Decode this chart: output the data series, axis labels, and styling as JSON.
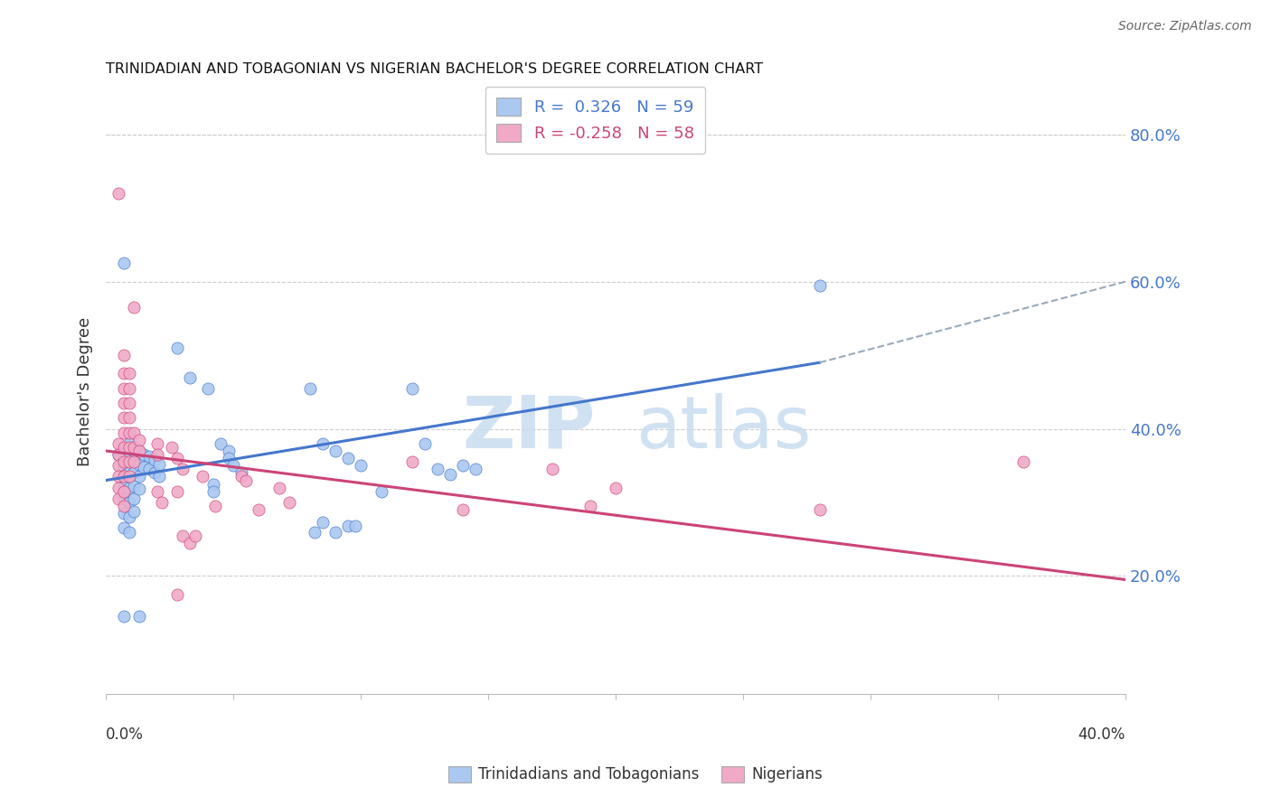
{
  "title": "TRINIDADIAN AND TOBAGONIAN VS NIGERIAN BACHELOR'S DEGREE CORRELATION CHART",
  "source": "Source: ZipAtlas.com",
  "ylabel": "Bachelor's Degree",
  "right_yticks": [
    20.0,
    40.0,
    60.0,
    80.0
  ],
  "xlim": [
    0.0,
    0.4
  ],
  "ylim": [
    0.04,
    0.86
  ],
  "blue_color": "#aac8f0",
  "pink_color": "#f0aac8",
  "blue_line_color": "#4477cc",
  "pink_line_color": "#cc4477",
  "dashed_line_color": "#99aabb",
  "watermark_zip": "ZIP",
  "watermark_atlas": "atlas",
  "blue_scatter": [
    [
      0.005,
      0.365
    ],
    [
      0.007,
      0.345
    ],
    [
      0.007,
      0.325
    ],
    [
      0.007,
      0.305
    ],
    [
      0.007,
      0.285
    ],
    [
      0.007,
      0.265
    ],
    [
      0.009,
      0.38
    ],
    [
      0.009,
      0.36
    ],
    [
      0.009,
      0.34
    ],
    [
      0.009,
      0.32
    ],
    [
      0.009,
      0.3
    ],
    [
      0.009,
      0.28
    ],
    [
      0.009,
      0.26
    ],
    [
      0.011,
      0.375
    ],
    [
      0.011,
      0.358
    ],
    [
      0.011,
      0.34
    ],
    [
      0.011,
      0.322
    ],
    [
      0.011,
      0.305
    ],
    [
      0.011,
      0.288
    ],
    [
      0.013,
      0.37
    ],
    [
      0.013,
      0.352
    ],
    [
      0.013,
      0.335
    ],
    [
      0.013,
      0.318
    ],
    [
      0.015,
      0.365
    ],
    [
      0.015,
      0.348
    ],
    [
      0.017,
      0.362
    ],
    [
      0.017,
      0.345
    ],
    [
      0.019,
      0.358
    ],
    [
      0.019,
      0.34
    ],
    [
      0.021,
      0.352
    ],
    [
      0.021,
      0.335
    ],
    [
      0.007,
      0.625
    ],
    [
      0.028,
      0.51
    ],
    [
      0.033,
      0.47
    ],
    [
      0.04,
      0.455
    ],
    [
      0.042,
      0.325
    ],
    [
      0.042,
      0.315
    ],
    [
      0.045,
      0.38
    ],
    [
      0.048,
      0.37
    ],
    [
      0.048,
      0.36
    ],
    [
      0.05,
      0.35
    ],
    [
      0.053,
      0.34
    ],
    [
      0.08,
      0.455
    ],
    [
      0.085,
      0.38
    ],
    [
      0.09,
      0.37
    ],
    [
      0.095,
      0.36
    ],
    [
      0.1,
      0.35
    ],
    [
      0.12,
      0.455
    ],
    [
      0.125,
      0.38
    ],
    [
      0.13,
      0.345
    ],
    [
      0.135,
      0.338
    ],
    [
      0.14,
      0.35
    ],
    [
      0.145,
      0.345
    ],
    [
      0.007,
      0.145
    ],
    [
      0.013,
      0.145
    ],
    [
      0.082,
      0.26
    ],
    [
      0.085,
      0.273
    ],
    [
      0.09,
      0.26
    ],
    [
      0.095,
      0.268
    ],
    [
      0.098,
      0.268
    ],
    [
      0.108,
      0.315
    ],
    [
      0.28,
      0.595
    ]
  ],
  "pink_scatter": [
    [
      0.005,
      0.72
    ],
    [
      0.005,
      0.38
    ],
    [
      0.005,
      0.365
    ],
    [
      0.005,
      0.35
    ],
    [
      0.005,
      0.335
    ],
    [
      0.005,
      0.32
    ],
    [
      0.005,
      0.305
    ],
    [
      0.007,
      0.5
    ],
    [
      0.007,
      0.475
    ],
    [
      0.007,
      0.455
    ],
    [
      0.007,
      0.435
    ],
    [
      0.007,
      0.415
    ],
    [
      0.007,
      0.395
    ],
    [
      0.007,
      0.375
    ],
    [
      0.007,
      0.355
    ],
    [
      0.007,
      0.335
    ],
    [
      0.007,
      0.315
    ],
    [
      0.007,
      0.295
    ],
    [
      0.009,
      0.475
    ],
    [
      0.009,
      0.455
    ],
    [
      0.009,
      0.435
    ],
    [
      0.009,
      0.415
    ],
    [
      0.009,
      0.395
    ],
    [
      0.009,
      0.375
    ],
    [
      0.009,
      0.355
    ],
    [
      0.009,
      0.335
    ],
    [
      0.011,
      0.565
    ],
    [
      0.011,
      0.395
    ],
    [
      0.011,
      0.375
    ],
    [
      0.011,
      0.355
    ],
    [
      0.013,
      0.385
    ],
    [
      0.013,
      0.37
    ],
    [
      0.02,
      0.38
    ],
    [
      0.02,
      0.365
    ],
    [
      0.02,
      0.315
    ],
    [
      0.022,
      0.3
    ],
    [
      0.026,
      0.375
    ],
    [
      0.028,
      0.36
    ],
    [
      0.028,
      0.315
    ],
    [
      0.028,
      0.175
    ],
    [
      0.03,
      0.345
    ],
    [
      0.03,
      0.255
    ],
    [
      0.033,
      0.245
    ],
    [
      0.035,
      0.255
    ],
    [
      0.038,
      0.335
    ],
    [
      0.043,
      0.295
    ],
    [
      0.053,
      0.335
    ],
    [
      0.055,
      0.33
    ],
    [
      0.06,
      0.29
    ],
    [
      0.068,
      0.32
    ],
    [
      0.072,
      0.3
    ],
    [
      0.12,
      0.355
    ],
    [
      0.14,
      0.29
    ],
    [
      0.19,
      0.295
    ],
    [
      0.28,
      0.29
    ],
    [
      0.36,
      0.355
    ],
    [
      0.2,
      0.32
    ],
    [
      0.175,
      0.345
    ]
  ],
  "blue_trend_solid": [
    0.0,
    0.28,
    0.33,
    0.49
  ],
  "blue_trend_dashed": [
    0.28,
    0.4,
    0.49,
    0.6
  ],
  "pink_trend": [
    0.0,
    0.4,
    0.37,
    0.195
  ]
}
